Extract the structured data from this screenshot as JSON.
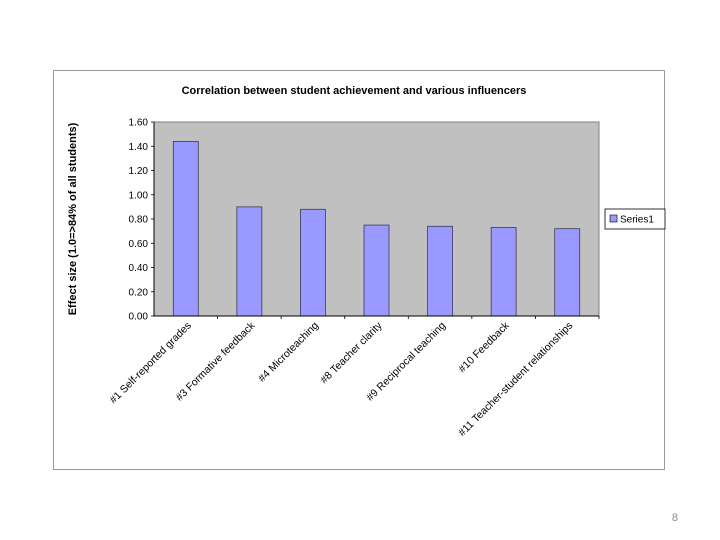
{
  "chart_data": {
    "type": "bar",
    "title": "Correlation between student achievement and various influencers",
    "ylabel": "Effect size (1.0=>84% of all students)",
    "xlabel": "",
    "categories": [
      "#1 Self-reported grades",
      "#3 Formative feedback",
      "#4 Microteaching",
      "#8 Teacher clarity",
      "#9 Reciprocal teaching",
      "#10 Feedback",
      "#11 Teacher-student relationships"
    ],
    "series": [
      {
        "name": "Series1",
        "values": [
          1.44,
          0.9,
          0.88,
          0.75,
          0.74,
          0.73,
          0.72
        ]
      }
    ],
    "ylim": [
      0,
      1.6
    ],
    "yticks": [
      "0.00",
      "0.20",
      "0.40",
      "0.60",
      "0.80",
      "1.00",
      "1.20",
      "1.40",
      "1.60"
    ],
    "grid": false,
    "legend": "right",
    "colors": {
      "bar": "#9999ff",
      "bar_border": "#3a3a55",
      "plot_bg": "#c0c0c0"
    }
  },
  "page": {
    "number": "8"
  }
}
